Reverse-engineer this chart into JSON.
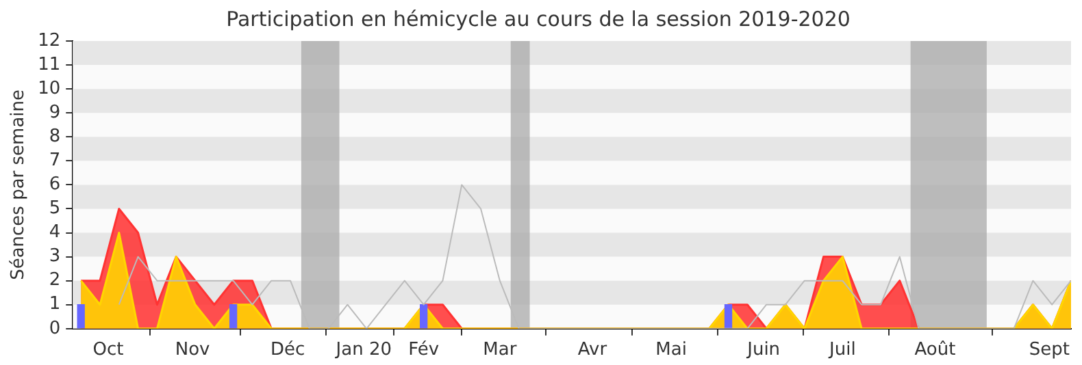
{
  "chart_data": {
    "type": "area",
    "title": "Participation en hémicycle au cours de la session 2019-2020",
    "ylabel": "Séances par semaine",
    "x": [
      "2019-09-30",
      "2019-10-07",
      "2019-10-14",
      "2019-10-21",
      "2019-10-28",
      "2019-11-04",
      "2019-11-11",
      "2019-11-18",
      "2019-11-25",
      "2019-12-02",
      "2019-12-09",
      "2019-12-16",
      "2019-12-23",
      "2019-12-30",
      "2020-01-06",
      "2020-01-13",
      "2020-01-20",
      "2020-01-27",
      "2020-02-03",
      "2020-02-10",
      "2020-02-17",
      "2020-02-24",
      "2020-03-02",
      "2020-03-09",
      "2020-03-16",
      "2020-03-23",
      "2020-03-30",
      "2020-04-06",
      "2020-04-13",
      "2020-04-20",
      "2020-04-27",
      "2020-05-04",
      "2020-05-11",
      "2020-05-18",
      "2020-05-25",
      "2020-06-01",
      "2020-06-08",
      "2020-06-15",
      "2020-06-22",
      "2020-06-29",
      "2020-07-06",
      "2020-07-13",
      "2020-07-20",
      "2020-07-27",
      "2020-08-03",
      "2020-08-10",
      "2020-08-17",
      "2020-08-24",
      "2020-08-31",
      "2020-09-07",
      "2020-09-14",
      "2020-09-21",
      "2020-09-28"
    ],
    "series": [
      {
        "type": "line",
        "color": "#bbbbbb",
        "values": [
          null,
          null,
          1,
          3,
          2,
          2,
          2,
          2,
          2,
          1,
          2,
          2,
          0,
          0,
          1,
          0,
          1,
          2,
          1,
          2,
          6,
          5,
          2,
          0,
          0,
          0,
          0,
          0,
          0,
          0,
          0,
          0,
          0,
          0,
          0,
          0,
          1,
          1,
          2,
          2,
          2,
          1,
          1,
          3,
          0,
          0,
          0,
          0,
          0,
          0,
          2,
          1,
          2
        ]
      },
      {
        "color": "#ff3333",
        "values": [
          2,
          2,
          5,
          4,
          1,
          3,
          2,
          1,
          2,
          2,
          0,
          0,
          0,
          0,
          0,
          0,
          0,
          0,
          1,
          1,
          0,
          0,
          0,
          0,
          0,
          0,
          0,
          0,
          0,
          0,
          0,
          0,
          0,
          0,
          1,
          1,
          0,
          1,
          0,
          3,
          3,
          1,
          1,
          2,
          0,
          0,
          0,
          0,
          0,
          0,
          1,
          0,
          2
        ]
      },
      {
        "color": "#ffd700",
        "values": [
          2,
          1,
          4,
          0,
          0,
          3,
          1,
          0,
          1,
          1,
          0,
          0,
          0,
          0,
          0,
          0,
          0,
          0,
          1,
          0,
          0,
          0,
          0,
          0,
          0,
          0,
          0,
          0,
          0,
          0,
          0,
          0,
          0,
          0,
          1,
          0,
          0,
          1,
          0,
          2,
          3,
          0,
          0,
          0,
          0,
          0,
          0,
          0,
          0,
          0,
          1,
          0,
          2
        ]
      },
      {
        "type": "bar",
        "color": "#6666ff",
        "values": [
          1,
          null,
          null,
          null,
          null,
          null,
          null,
          null,
          1,
          null,
          null,
          null,
          null,
          null,
          null,
          null,
          null,
          null,
          1,
          null,
          null,
          null,
          null,
          null,
          null,
          null,
          null,
          null,
          null,
          null,
          null,
          null,
          null,
          null,
          1,
          null,
          null,
          null,
          null,
          null,
          null,
          null,
          null,
          null,
          null,
          null,
          null,
          null,
          null,
          null,
          null,
          null,
          null
        ]
      }
    ],
    "xlim": [
      "2019-09-27",
      "2020-09-28"
    ],
    "xticks": [
      {
        "value": "2019-10-10",
        "label": "Oct"
      },
      {
        "value": "2019-11-10",
        "label": "Nov"
      },
      {
        "value": "2019-12-15",
        "label": "Déc"
      },
      {
        "value": "2020-01-12",
        "label": "Jan 20"
      },
      {
        "value": "2020-02-03",
        "label": "Fév"
      },
      {
        "value": "2020-03-02",
        "label": "Mar"
      },
      {
        "value": "2020-04-05",
        "label": "Avr"
      },
      {
        "value": "2020-05-04",
        "label": "Mai"
      },
      {
        "value": "2020-06-07",
        "label": "Juin"
      },
      {
        "value": "2020-07-06",
        "label": "Juil"
      },
      {
        "value": "2020-08-09",
        "label": "Août"
      },
      {
        "value": "2020-09-20",
        "label": "Sept"
      }
    ],
    "ylim": [
      0,
      12
    ],
    "yticks": [
      0,
      1,
      2,
      3,
      4,
      5,
      6,
      7,
      8,
      9,
      10,
      11,
      12
    ],
    "legend": false,
    "bands": [
      {
        "axis": "y",
        "from": 1,
        "to": 2,
        "color": "#e6e6e6"
      },
      {
        "axis": "y",
        "from": 3,
        "to": 4,
        "color": "#e6e6e6"
      },
      {
        "axis": "y",
        "from": 5,
        "to": 6,
        "color": "#e6e6e6"
      },
      {
        "axis": "y",
        "from": 7,
        "to": 8,
        "color": "#e6e6e6"
      },
      {
        "axis": "y",
        "from": 9,
        "to": 10,
        "color": "#e6e6e6"
      },
      {
        "axis": "y",
        "from": 11,
        "to": 12,
        "color": "#e6e6e6"
      },
      {
        "axis": "x",
        "from": "2019-12-20",
        "to": "2020-01-03",
        "color": "#aaaaaa"
      },
      {
        "axis": "x",
        "from": "2020-03-06",
        "to": "2020-03-13",
        "color": "#aaaaaa"
      },
      {
        "axis": "x",
        "from": "2020-07-31",
        "to": "2020-08-28",
        "color": "#aaaaaa"
      }
    ]
  }
}
